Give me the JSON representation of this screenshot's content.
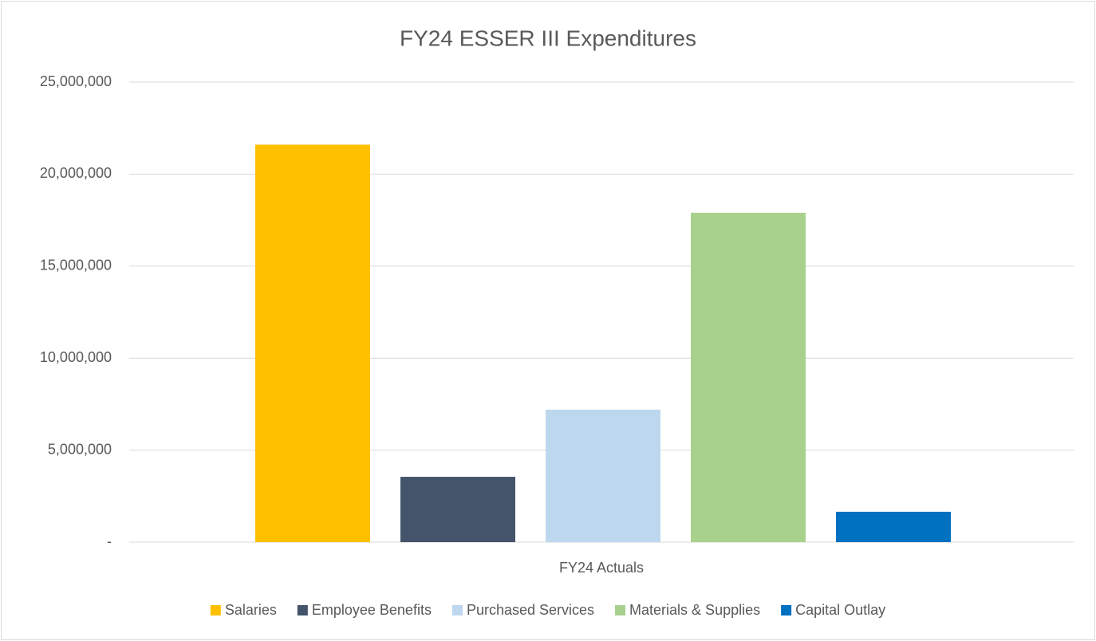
{
  "chart_data": {
    "type": "bar",
    "title": "FY24 ESSER III Expenditures",
    "categories": [
      "FY24 Actuals"
    ],
    "series": [
      {
        "name": "Salaries",
        "color": "#FFC000",
        "values": [
          21600000
        ]
      },
      {
        "name": "Employee Benefits",
        "color": "#44546A",
        "values": [
          3550000
        ]
      },
      {
        "name": "Purchased Services",
        "color": "#BDD7EE",
        "values": [
          7200000
        ]
      },
      {
        "name": "Materials & Supplies",
        "color": "#A9D18E",
        "values": [
          17900000
        ]
      },
      {
        "name": "Capital Outlay",
        "color": "#0070C0",
        "values": [
          1650000
        ]
      }
    ],
    "ylim": [
      0,
      25000000
    ],
    "yticks": [
      {
        "value": 0,
        "label": "-"
      },
      {
        "value": 5000000,
        "label": "5,000,000"
      },
      {
        "value": 10000000,
        "label": "10,000,000"
      },
      {
        "value": 15000000,
        "label": "15,000,000"
      },
      {
        "value": 20000000,
        "label": "20,000,000"
      },
      {
        "value": 25000000,
        "label": "25,000,000"
      }
    ],
    "grid": true,
    "legend": "bottom"
  }
}
